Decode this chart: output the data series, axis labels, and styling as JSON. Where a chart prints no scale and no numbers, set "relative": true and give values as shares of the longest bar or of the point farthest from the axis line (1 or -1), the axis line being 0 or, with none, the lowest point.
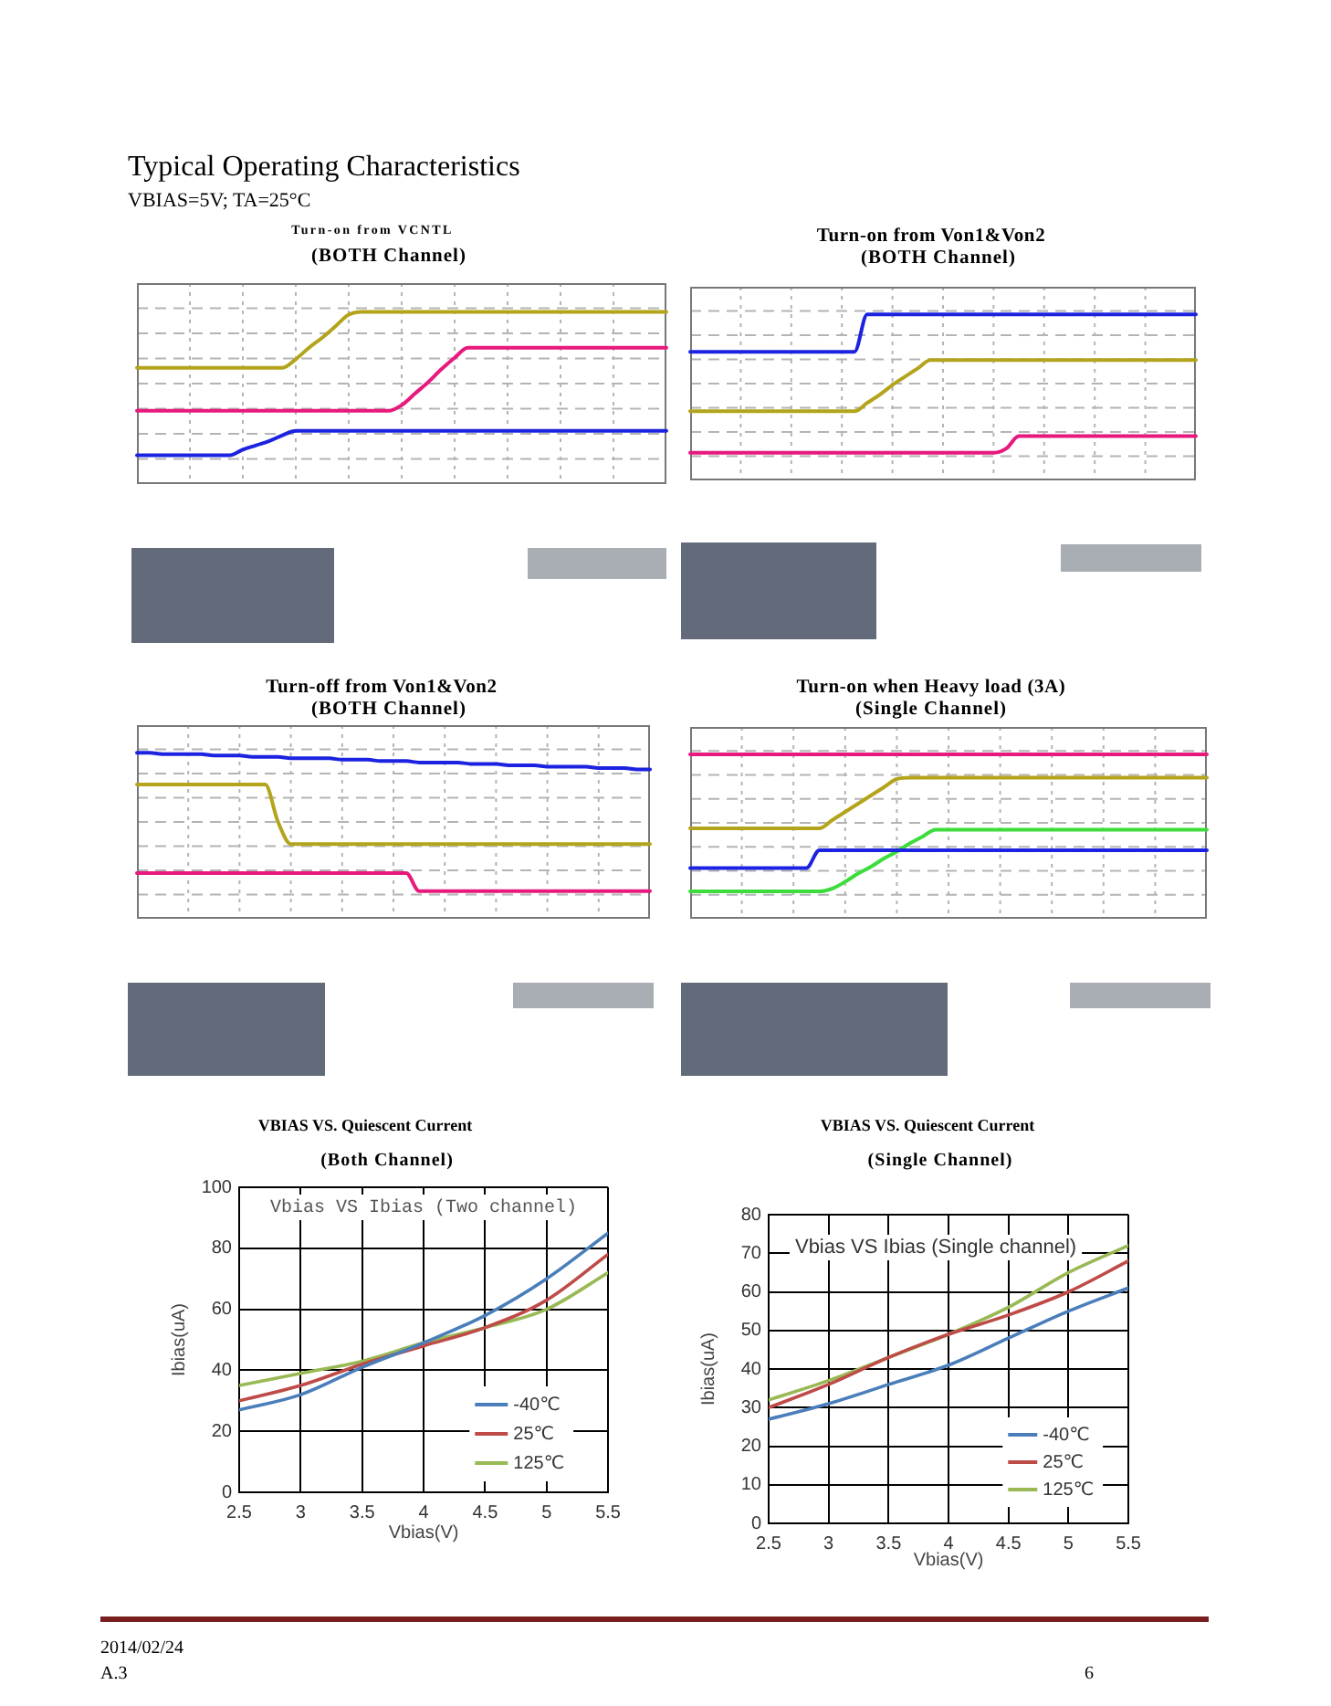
{
  "chart_data": [
    {
      "type": "other",
      "title": "Typical Operating Characteristics",
      "subtitle": "VBIAS=5V; TA=25°C",
      "annotations": [
        "2014/02/24",
        "A.3",
        "6"
      ]
    },
    {
      "type": "line",
      "title": "Turn-on from VCNTL",
      "subtitle": "(BOTH Channel)",
      "relative": true,
      "grid": true,
      "categories": [
        null,
        null,
        null,
        null,
        null,
        null,
        null,
        null,
        null,
        null,
        null,
        null,
        null,
        null,
        null,
        null,
        null,
        null,
        null,
        null,
        null,
        null,
        null,
        null,
        null,
        null,
        null,
        null,
        null,
        null,
        null,
        null,
        null,
        null,
        null,
        null,
        null,
        null,
        null,
        null,
        null
      ],
      "series": [
        {
          "color": "#b3a41c",
          "values": [
            0.61,
            0.61,
            0.61,
            0.61,
            0.61,
            0.61,
            0.61,
            0.61,
            0.61,
            0.61,
            0.61,
            0.61,
            0.67,
            0.75,
            0.82,
            0.9,
            0.98,
            1,
            1,
            1,
            1,
            1,
            1,
            1,
            1,
            1,
            1,
            1,
            1,
            1,
            1,
            1,
            1,
            1,
            1,
            1,
            1,
            1,
            1,
            1,
            1
          ]
        },
        {
          "color": "#e8197d",
          "values": [
            0.31,
            0.31,
            0.31,
            0.31,
            0.31,
            0.31,
            0.31,
            0.31,
            0.31,
            0.31,
            0.31,
            0.31,
            0.31,
            0.31,
            0.31,
            0.31,
            0.31,
            0.31,
            0.31,
            0.31,
            0.35,
            0.43,
            0.51,
            0.6,
            0.68,
            0.75,
            0.75,
            0.75,
            0.75,
            0.75,
            0.75,
            0.75,
            0.75,
            0.75,
            0.75,
            0.75,
            0.75,
            0.75,
            0.75,
            0.75,
            0.75
          ]
        },
        {
          "color": "#1c23e0",
          "values": [
            0,
            0,
            0,
            0,
            0,
            0,
            0,
            0,
            0.04,
            0.07,
            0.1,
            0.14,
            0.17,
            0.17,
            0.17,
            0.17,
            0.17,
            0.17,
            0.17,
            0.17,
            0.17,
            0.17,
            0.17,
            0.17,
            0.17,
            0.17,
            0.17,
            0.17,
            0.17,
            0.17,
            0.17,
            0.17,
            0.17,
            0.17,
            0.17,
            0.17,
            0.17,
            0.17,
            0.17,
            0.17,
            0.17
          ]
        }
      ]
    },
    {
      "type": "line",
      "title": "Turn-on from Von1&Von2",
      "subtitle": "(BOTH Channel)",
      "relative": true,
      "grid": true,
      "categories": [
        null,
        null,
        null,
        null,
        null,
        null,
        null,
        null,
        null,
        null,
        null,
        null,
        null,
        null,
        null,
        null,
        null,
        null,
        null,
        null,
        null,
        null,
        null,
        null,
        null,
        null,
        null,
        null,
        null,
        null,
        null,
        null,
        null,
        null,
        null,
        null,
        null,
        null,
        null,
        null,
        null
      ],
      "series": [
        {
          "color": "#1c23e0",
          "values": [
            0.73,
            0.73,
            0.73,
            0.73,
            0.73,
            0.73,
            0.73,
            0.73,
            0.73,
            0.73,
            0.73,
            0.73,
            0.73,
            0.73,
            1,
            1,
            1,
            1,
            1,
            1,
            1,
            1,
            1,
            1,
            1,
            1,
            1,
            1,
            1,
            1,
            1,
            1,
            1,
            1,
            1,
            1,
            1,
            1,
            1,
            1,
            1
          ]
        },
        {
          "color": "#b3a41c",
          "values": [
            0.3,
            0.3,
            0.3,
            0.3,
            0.3,
            0.3,
            0.3,
            0.3,
            0.3,
            0.3,
            0.3,
            0.3,
            0.3,
            0.3,
            0.36,
            0.42,
            0.49,
            0.55,
            0.61,
            0.67,
            0.67,
            0.67,
            0.67,
            0.67,
            0.67,
            0.67,
            0.67,
            0.67,
            0.67,
            0.67,
            0.67,
            0.67,
            0.67,
            0.67,
            0.67,
            0.67,
            0.67,
            0.67,
            0.67,
            0.67,
            0.67
          ]
        },
        {
          "color": "#e8197d",
          "values": [
            0,
            0,
            0,
            0,
            0,
            0,
            0,
            0,
            0,
            0,
            0,
            0,
            0,
            0,
            0,
            0,
            0,
            0,
            0,
            0,
            0,
            0,
            0,
            0,
            0,
            0.03,
            0.12,
            0.12,
            0.12,
            0.12,
            0.12,
            0.12,
            0.12,
            0.12,
            0.12,
            0.12,
            0.12,
            0.12,
            0.12,
            0.12,
            0.12
          ]
        }
      ]
    },
    {
      "type": "line",
      "title": "Turn-off from Von1&Von2",
      "subtitle": "(BOTH Channel)",
      "relative": true,
      "grid": true,
      "categories": [
        null,
        null,
        null,
        null,
        null,
        null,
        null,
        null,
        null,
        null,
        null,
        null,
        null,
        null,
        null,
        null,
        null,
        null,
        null,
        null,
        null,
        null,
        null,
        null,
        null,
        null,
        null,
        null,
        null,
        null,
        null,
        null,
        null,
        null,
        null,
        null,
        null,
        null,
        null,
        null,
        null
      ],
      "series": [
        {
          "color": "#1c23e0",
          "values": [
            1,
            1,
            0.99,
            0.99,
            0.99,
            0.99,
            0.98,
            0.98,
            0.98,
            0.97,
            0.97,
            0.97,
            0.96,
            0.96,
            0.96,
            0.96,
            0.95,
            0.95,
            0.95,
            0.94,
            0.94,
            0.94,
            0.93,
            0.93,
            0.93,
            0.93,
            0.92,
            0.92,
            0.92,
            0.91,
            0.91,
            0.91,
            0.9,
            0.9,
            0.9,
            0.9,
            0.89,
            0.89,
            0.89,
            0.88,
            0.88
          ]
        },
        {
          "color": "#b3a41c",
          "values": [
            0.77,
            0.77,
            0.77,
            0.77,
            0.77,
            0.77,
            0.77,
            0.77,
            0.77,
            0.77,
            0.77,
            0.5,
            0.34,
            0.34,
            0.34,
            0.34,
            0.34,
            0.34,
            0.34,
            0.34,
            0.34,
            0.34,
            0.34,
            0.34,
            0.34,
            0.34,
            0.34,
            0.34,
            0.34,
            0.34,
            0.34,
            0.34,
            0.34,
            0.34,
            0.34,
            0.34,
            0.34,
            0.34,
            0.34,
            0.34,
            0.34
          ]
        },
        {
          "color": "#e8197d",
          "values": [
            0.13,
            0.13,
            0.13,
            0.13,
            0.13,
            0.13,
            0.13,
            0.13,
            0.13,
            0.13,
            0.13,
            0.13,
            0.13,
            0.13,
            0.13,
            0.13,
            0.13,
            0.13,
            0.13,
            0.13,
            0.13,
            0.13,
            0,
            0,
            0,
            0,
            0,
            0,
            0,
            0,
            0,
            0,
            0,
            0,
            0,
            0,
            0,
            0,
            0,
            0,
            0
          ]
        }
      ]
    },
    {
      "type": "line",
      "title": "Turn-on when Heavy load (3A)",
      "subtitle": "(Single Channel)",
      "relative": true,
      "grid": true,
      "categories": [
        null,
        null,
        null,
        null,
        null,
        null,
        null,
        null,
        null,
        null,
        null,
        null,
        null,
        null,
        null,
        null,
        null,
        null,
        null,
        null,
        null,
        null,
        null,
        null,
        null,
        null,
        null,
        null,
        null,
        null,
        null,
        null,
        null,
        null,
        null,
        null,
        null,
        null,
        null,
        null,
        null
      ],
      "series": [
        {
          "color": "#e8197d",
          "values": [
            1,
            1,
            1,
            1,
            1,
            1,
            1,
            1,
            1,
            1,
            1,
            1,
            1,
            1,
            1,
            1,
            1,
            1,
            1,
            1,
            1,
            1,
            1,
            1,
            1,
            1,
            1,
            1,
            1,
            1,
            1,
            1,
            1,
            1,
            1,
            1,
            1,
            1,
            1,
            1,
            1
          ]
        },
        {
          "color": "#b3a41c",
          "values": [
            0.46,
            0.46,
            0.46,
            0.46,
            0.46,
            0.46,
            0.46,
            0.46,
            0.46,
            0.46,
            0.46,
            0.52,
            0.58,
            0.64,
            0.7,
            0.76,
            0.82,
            0.83,
            0.83,
            0.83,
            0.83,
            0.83,
            0.83,
            0.83,
            0.83,
            0.83,
            0.83,
            0.83,
            0.83,
            0.83,
            0.83,
            0.83,
            0.83,
            0.83,
            0.83,
            0.83,
            0.83,
            0.83,
            0.83,
            0.83,
            0.83
          ]
        },
        {
          "color": "#1c23e0",
          "values": [
            0.17,
            0.17,
            0.17,
            0.17,
            0.17,
            0.17,
            0.17,
            0.17,
            0.17,
            0.17,
            0.3,
            0.3,
            0.3,
            0.3,
            0.3,
            0.3,
            0.3,
            0.3,
            0.3,
            0.3,
            0.3,
            0.3,
            0.3,
            0.3,
            0.3,
            0.3,
            0.3,
            0.3,
            0.3,
            0.3,
            0.3,
            0.3,
            0.3,
            0.3,
            0.3,
            0.3,
            0.3,
            0.3,
            0.3,
            0.3,
            0.3
          ]
        },
        {
          "color": "#3cdc3c",
          "values": [
            0,
            0,
            0,
            0,
            0,
            0,
            0,
            0,
            0,
            0,
            0,
            0.02,
            0.07,
            0.13,
            0.18,
            0.24,
            0.29,
            0.35,
            0.4,
            0.45,
            0.45,
            0.45,
            0.45,
            0.45,
            0.45,
            0.45,
            0.45,
            0.45,
            0.45,
            0.45,
            0.45,
            0.45,
            0.45,
            0.45,
            0.45,
            0.45,
            0.45,
            0.45,
            0.45,
            0.45,
            0.45
          ]
        }
      ]
    },
    {
      "type": "line",
      "title": "VBIAS VS. Quiescent Current",
      "subtitle": "(Both Channel)",
      "annotations": [
        "Vbias VS Ibias (Two channel)"
      ],
      "xlabel": "Vbias(V)",
      "ylabel": "Ibias(uA)",
      "x": [
        2.5,
        3,
        3.5,
        4,
        4.5,
        5,
        5.5
      ],
      "xlim": [
        2.5,
        5.5
      ],
      "xticks": [
        2.5,
        3,
        3.5,
        4,
        4.5,
        5,
        5.5
      ],
      "ylim": [
        0,
        100
      ],
      "yticks": [
        0,
        20,
        40,
        60,
        80,
        100
      ],
      "grid": true,
      "legend": "bottom right",
      "series": [
        {
          "name": "-40℃",
          "color": "#4a7ebb",
          "values": [
            27,
            32,
            41,
            49,
            58,
            70,
            85
          ]
        },
        {
          "name": "25℃",
          "color": "#be4b48",
          "values": [
            30,
            35,
            42,
            48,
            54,
            63,
            78
          ]
        },
        {
          "name": "125℃",
          "color": "#98b954",
          "values": [
            35,
            39,
            43,
            49,
            54,
            60,
            72
          ]
        }
      ]
    },
    {
      "type": "line",
      "title": "VBIAS VS. Quiescent Current",
      "subtitle": "(Single Channel)",
      "annotations": [
        "Vbias VS Ibias (Single channel)"
      ],
      "xlabel": "Vbias(V)",
      "ylabel": "Ibias(uA)",
      "x": [
        2.5,
        3,
        3.5,
        4,
        4.5,
        5,
        5.5
      ],
      "xlim": [
        2.5,
        5.5
      ],
      "xticks": [
        2.5,
        3,
        3.5,
        4,
        4.5,
        5,
        5.5
      ],
      "ylim": [
        0,
        80
      ],
      "yticks": [
        0,
        10,
        20,
        30,
        40,
        50,
        60,
        70,
        80
      ],
      "grid": true,
      "legend": "bottom right",
      "series": [
        {
          "name": "-40℃",
          "color": "#4a7ebb",
          "values": [
            27,
            31,
            36,
            41,
            48,
            55,
            61
          ]
        },
        {
          "name": "25℃",
          "color": "#be4b48",
          "values": [
            30,
            36,
            43,
            49,
            54,
            60,
            68
          ]
        },
        {
          "name": "125℃",
          "color": "#98b954",
          "values": [
            32,
            37,
            43,
            49,
            56,
            65,
            72
          ]
        }
      ]
    }
  ]
}
